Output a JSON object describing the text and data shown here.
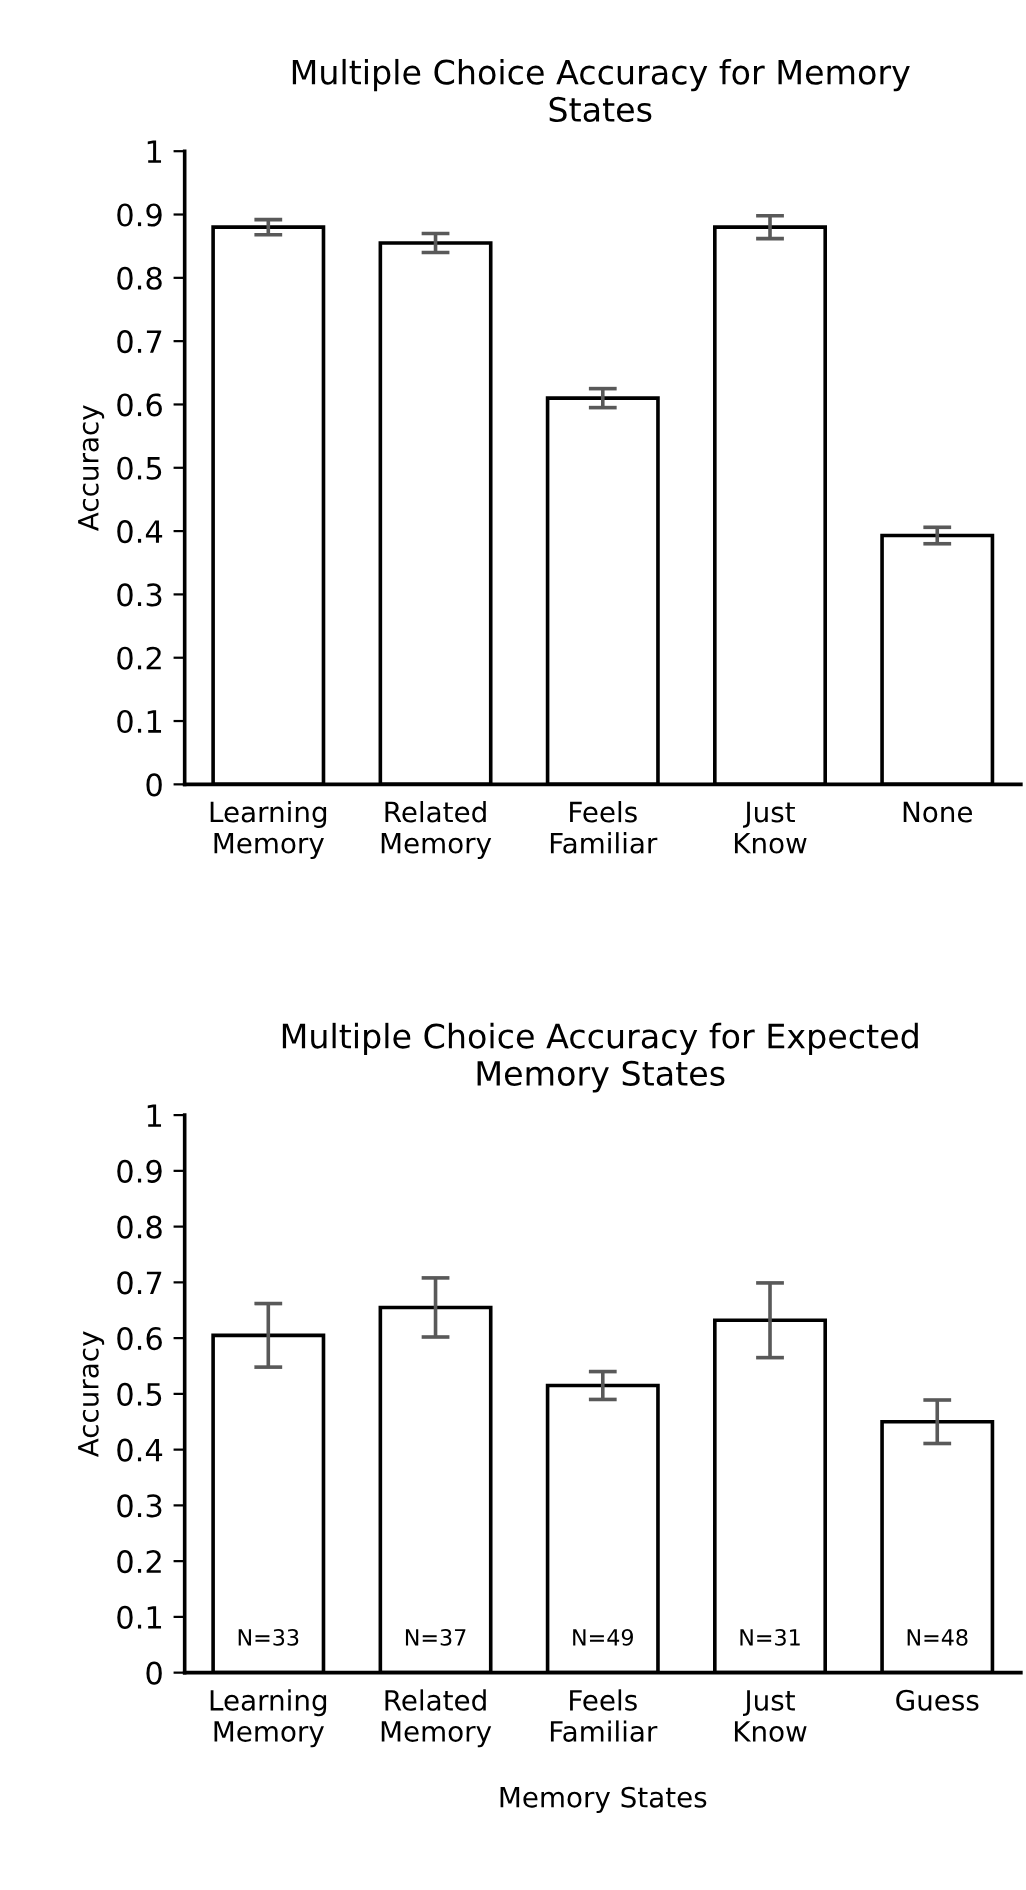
{
  "chart_data": [
    {
      "type": "bar",
      "title": "Multiple Choice Accuracy for Memory States",
      "ylabel": "Accuracy",
      "categories": [
        "Learning\nMemory",
        "Related\nMemory",
        "Feels\nFamiliar",
        "Just\nKnow",
        "None"
      ],
      "values": [
        0.88,
        0.855,
        0.61,
        0.88,
        0.393
      ],
      "errors": [
        0.012,
        0.015,
        0.015,
        0.018,
        0.013
      ],
      "color": "#ffffff",
      "ylim": [
        0,
        1
      ],
      "yticks": [
        0,
        0.1,
        0.2,
        0.3,
        0.4,
        0.5,
        0.6,
        0.7,
        0.8,
        0.9,
        1
      ],
      "grid": false
    },
    {
      "type": "bar",
      "title": "Multiple Choice Accuracy for Expected Memory States",
      "ylabel": "Accuracy",
      "xlabel": "Memory States",
      "categories": [
        "Learning\nMemory",
        "Related\nMemory",
        "Feels\nFamiliar",
        "Just\nKnow",
        "Guess"
      ],
      "values": [
        0.605,
        0.655,
        0.515,
        0.632,
        0.45
      ],
      "errors": [
        0.057,
        0.053,
        0.025,
        0.067,
        0.039
      ],
      "color": "#ffffff",
      "ylim": [
        0,
        1
      ],
      "yticks": [
        0,
        0.1,
        0.2,
        0.3,
        0.4,
        0.5,
        0.6,
        0.7,
        0.8,
        0.9,
        1
      ],
      "grid": false,
      "annotations": [
        "N=33",
        "N=37",
        "N=49",
        "N=31",
        "N=48"
      ]
    }
  ]
}
